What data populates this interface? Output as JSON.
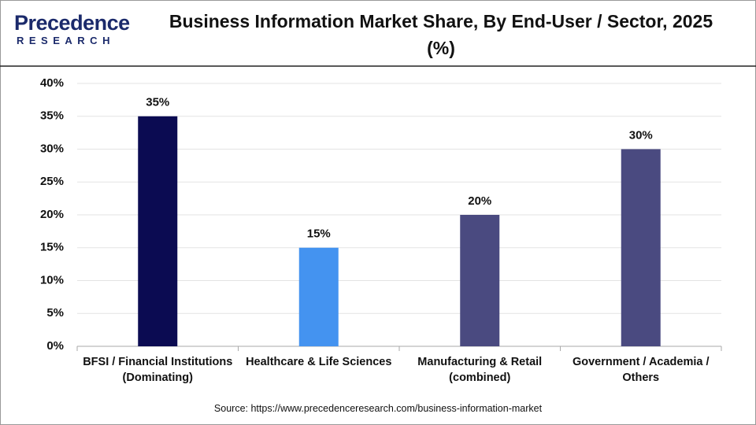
{
  "logo": {
    "name": "Precedence",
    "tagline": "RESEARCH"
  },
  "chart_data": {
    "type": "bar",
    "title": "Business Information Market Share, By End-User / Sector, 2025 (%)",
    "categories": [
      "BFSI / Financial Institutions (Dominating)",
      "Healthcare & Life Sciences",
      "Manufacturing & Retail (combined)",
      "Government / Academia / Others"
    ],
    "values": [
      35,
      15,
      20,
      30
    ],
    "value_labels": [
      "35%",
      "15%",
      "20%",
      "30%"
    ],
    "colors": [
      "#0b0b52",
      "#4493f0",
      "#4a4a80",
      "#4a4a80"
    ],
    "ylim": [
      0,
      40
    ],
    "yticks": [
      {
        "value": 0,
        "label": "0%"
      },
      {
        "value": 5,
        "label": "5%"
      },
      {
        "value": 10,
        "label": "10%"
      },
      {
        "value": 15,
        "label": "15%"
      },
      {
        "value": 20,
        "label": "20%"
      },
      {
        "value": 25,
        "label": "25%"
      },
      {
        "value": 30,
        "label": "30%"
      },
      {
        "value": 35,
        "label": "35%"
      },
      {
        "value": 40,
        "label": "40%"
      }
    ],
    "grid": true,
    "source": "Source: https://www.precedenceresearch.com/business-information-market"
  }
}
